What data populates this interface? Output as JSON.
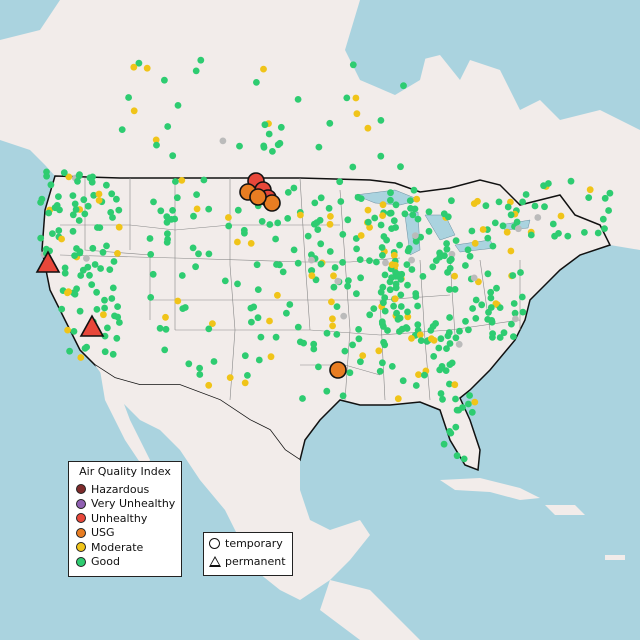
{
  "legend": {
    "title": "Air Quality Index",
    "categories": [
      {
        "label": "Hazardous",
        "color": "#7e2b2b"
      },
      {
        "label": "Very Unhealthy",
        "color": "#8f5fb2"
      },
      {
        "label": "Unhealthy",
        "color": "#e8473a"
      },
      {
        "label": "USG",
        "color": "#e87d22"
      },
      {
        "label": "Moderate",
        "color": "#f0c419"
      },
      {
        "label": "Good",
        "color": "#2ecc71"
      }
    ]
  },
  "type_legend": {
    "temporary": "temporary",
    "permanent": "permanent"
  }
}
